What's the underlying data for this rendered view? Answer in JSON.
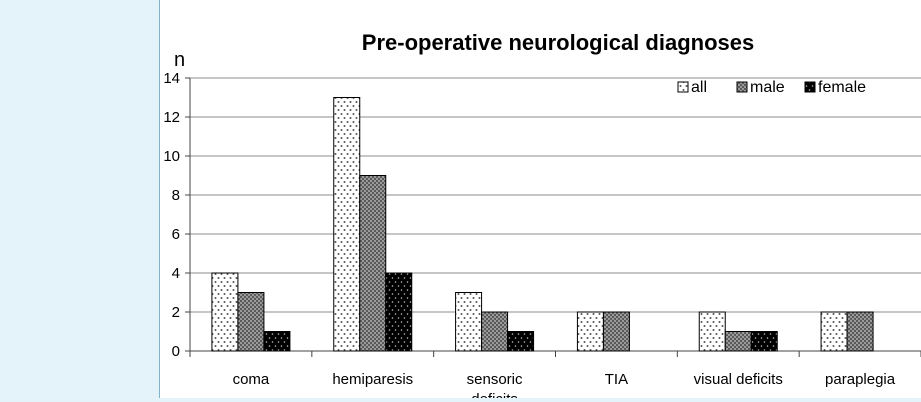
{
  "chart_data": {
    "type": "bar",
    "title": "Pre-operative neurological diagnoses",
    "ylabel": "n",
    "xlabel": "",
    "ylim": [
      0,
      14
    ],
    "yticks": [
      0,
      2,
      4,
      6,
      8,
      10,
      12,
      14
    ],
    "grid": true,
    "legend_position": "top-right",
    "categories": [
      "coma",
      "hemiparesis",
      "sensoric deficits",
      "TIA",
      "visual deficits",
      "paraplegia"
    ],
    "series": [
      {
        "name": "all",
        "pattern": "dotted",
        "values": [
          4,
          13,
          3,
          2,
          2,
          2
        ]
      },
      {
        "name": "male",
        "pattern": "checkered",
        "values": [
          3,
          9,
          2,
          2,
          1,
          2
        ]
      },
      {
        "name": "female",
        "pattern": "black-dotted",
        "values": [
          1,
          4,
          1,
          0,
          1,
          0
        ]
      }
    ]
  }
}
